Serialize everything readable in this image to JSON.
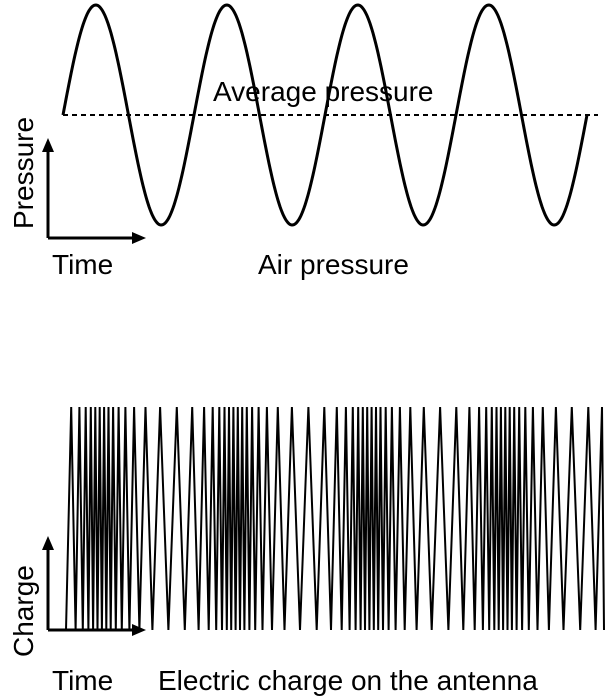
{
  "air_pressure": {
    "title": "Air pressure",
    "average_label": "Average pressure",
    "y_axis_label": "Pressure",
    "x_axis_label": "Time",
    "cycles": 4
  },
  "antenna_charge": {
    "title": "Electric charge on the antenna",
    "y_axis_label": "Charge",
    "x_axis_label": "Time"
  },
  "colors": {
    "ink": "#000000",
    "background": "#ffffff"
  }
}
